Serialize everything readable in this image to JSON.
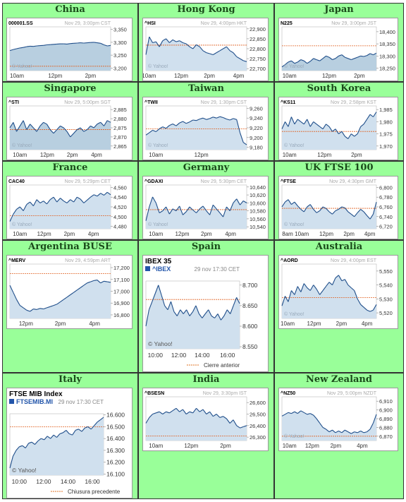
{
  "chart_data": [
    {
      "market": "China",
      "type": "line",
      "symbol": "000001.SS",
      "timestamp": "Nov 29, 3:00pm CST",
      "watermark": "© Yahoo!",
      "style": "small",
      "dark": true,
      "ylim": [
        3190,
        3360
      ],
      "yticks": [
        "3,350",
        "3,300",
        "3,250",
        "3,200"
      ],
      "ytick_values": [
        3350,
        3300,
        3250,
        3200
      ],
      "xticks": [
        "10am",
        "12pm",
        "2pm"
      ],
      "xtick_pos": [
        0.07,
        0.45,
        0.8
      ],
      "prev_close": 3207,
      "values": [
        3268,
        3272,
        3275,
        3278,
        3280,
        3283,
        3285,
        3284,
        3286,
        3287,
        3288,
        3290,
        3291,
        3292,
        3293,
        3294,
        3294,
        3293,
        3295,
        3296,
        3297,
        3298,
        3297,
        3298,
        3299,
        3300,
        3298,
        3296,
        3290,
        3286,
        3288
      ]
    },
    {
      "market": "Hong Kong",
      "type": "line",
      "symbol": "^HSI",
      "timestamp": "Nov 29, 4:00pm HKT",
      "watermark": "© Yahoo!",
      "style": "small",
      "dark": false,
      "ylim": [
        22690,
        22910
      ],
      "yticks": [
        "22,900",
        "22,850",
        "22,800",
        "22,750",
        "22,700"
      ],
      "ytick_values": [
        22900,
        22850,
        22800,
        22750,
        22700
      ],
      "xticks": [
        "10am",
        "12pm",
        "2pm",
        "4pm"
      ],
      "xtick_pos": [
        0.03,
        0.35,
        0.63,
        0.92
      ],
      "prev_close": 22818,
      "values": [
        22770,
        22860,
        22830,
        22835,
        22810,
        22840,
        22850,
        22830,
        22845,
        22835,
        22840,
        22830,
        22825,
        22810,
        22800,
        22820,
        22810,
        22790,
        22780,
        22775,
        22770,
        22780,
        22790,
        22800,
        22810,
        22790,
        22780,
        22760,
        22750,
        22740,
        22735
      ]
    },
    {
      "market": "Japan",
      "type": "line",
      "symbol": "N225",
      "timestamp": "Nov 29, 3:00pm JST",
      "watermark": "© Yahoo!",
      "style": "small",
      "dark": true,
      "ylim": [
        18240,
        18420
      ],
      "yticks": [
        "18,400",
        "18,350",
        "18,300",
        "18,250"
      ],
      "ytick_values": [
        18400,
        18350,
        18300,
        18250
      ],
      "xticks": [
        "10am",
        "12pm",
        "2pm"
      ],
      "xtick_pos": [
        0.08,
        0.5,
        0.82
      ],
      "prev_close": 18342,
      "values": [
        18255,
        18265,
        18275,
        18280,
        18270,
        18275,
        18285,
        18280,
        18270,
        18278,
        18290,
        18285,
        18280,
        18290,
        18300,
        18295,
        18285,
        18290,
        18300,
        18305,
        18295,
        18290,
        18285,
        18290,
        18295,
        18300,
        18298,
        18302,
        18310,
        18305,
        18312
      ]
    },
    {
      "market": "Singapore",
      "type": "line",
      "symbol": "^STI",
      "timestamp": "Nov 29, 5:00pm SGT",
      "watermark": "© Yahoo!",
      "style": "small",
      "dark": true,
      "ylim": [
        2863,
        2887
      ],
      "yticks": [
        "2,885",
        "2,880",
        "2,875",
        "2,870",
        "2,865"
      ],
      "ytick_values": [
        2885,
        2880,
        2875,
        2870,
        2865
      ],
      "xticks": [
        "10am",
        "12pm",
        "2pm",
        "4pm"
      ],
      "xtick_pos": [
        0.1,
        0.37,
        0.62,
        0.86
      ],
      "prev_close": 2874,
      "values": [
        2875,
        2878,
        2873,
        2876,
        2879,
        2874,
        2877,
        2875,
        2873,
        2876,
        2878,
        2877,
        2874,
        2872,
        2874,
        2876,
        2875,
        2873,
        2870,
        2872,
        2874,
        2875,
        2873,
        2874,
        2876,
        2875,
        2877,
        2878,
        2876,
        2879,
        2878
      ]
    },
    {
      "market": "Taiwan",
      "type": "line",
      "symbol": "^TWII",
      "timestamp": "Nov 29, 1:30pm CST",
      "watermark": "© Yahoo!",
      "style": "small",
      "dark": false,
      "ylim": [
        9175,
        9265
      ],
      "yticks": [
        "9,260",
        "9,240",
        "9,220",
        "9,200",
        "9,180"
      ],
      "ytick_values": [
        9260,
        9240,
        9220,
        9200,
        9180
      ],
      "xticks": [
        "10am",
        "12pm"
      ],
      "xtick_pos": [
        0.1,
        0.55
      ],
      "prev_close": 9218,
      "values": [
        9205,
        9210,
        9215,
        9212,
        9218,
        9222,
        9219,
        9225,
        9228,
        9224,
        9230,
        9233,
        9229,
        9232,
        9236,
        9235,
        9238,
        9240,
        9237,
        9239,
        9242,
        9240,
        9243,
        9241,
        9238,
        9236,
        9239,
        9237,
        9210,
        9190,
        9185
      ]
    },
    {
      "market": "South Korea",
      "type": "line",
      "symbol": "^KS11",
      "timestamp": "Nov 29, 2:58pm KST",
      "watermark": "© Yahoo!",
      "style": "small",
      "dark": false,
      "ylim": [
        1968.5,
        1986.5
      ],
      "yticks": [
        "1,985",
        "1,980",
        "1,975",
        "1,970"
      ],
      "ytick_values": [
        1985,
        1980,
        1975,
        1970
      ],
      "xticks": [
        "10am",
        "12pm",
        "2pm"
      ],
      "xtick_pos": [
        0.08,
        0.45,
        0.79
      ],
      "prev_close": 1976,
      "values": [
        1977,
        1980,
        1978,
        1982,
        1979,
        1981,
        1980,
        1979,
        1981,
        1978,
        1980,
        1979,
        1978,
        1977,
        1979,
        1978,
        1976,
        1977,
        1975,
        1976,
        1974,
        1973,
        1975,
        1974,
        1975,
        1978,
        1979,
        1981,
        1983,
        1982,
        1984
      ]
    },
    {
      "market": "France",
      "type": "line",
      "symbol": "CAC40",
      "timestamp": "Nov 29, 5:29pm CET",
      "watermark": "© Yahoo!",
      "style": "small",
      "dark": false,
      "ylim": [
        4475,
        4565
      ],
      "yticks": [
        "4,560",
        "4,540",
        "4,520",
        "4,500",
        "4,480"
      ],
      "ytick_values": [
        4560,
        4540,
        4520,
        4500,
        4480
      ],
      "xticks": [
        "10am",
        "12pm",
        "2pm",
        "4pm"
      ],
      "xtick_pos": [
        0.1,
        0.34,
        0.59,
        0.83
      ],
      "prev_close": 4502,
      "values": [
        4490,
        4505,
        4515,
        4520,
        4512,
        4525,
        4530,
        4522,
        4535,
        4528,
        4532,
        4526,
        4535,
        4540,
        4530,
        4538,
        4532,
        4528,
        4535,
        4530,
        4540,
        4536,
        4528,
        4534,
        4540,
        4545,
        4542,
        4548,
        4544,
        4550,
        4545
      ]
    },
    {
      "market": "Germany",
      "type": "line",
      "symbol": "^GDAXI",
      "timestamp": "Nov 29, 5:30pm CET",
      "watermark": "© Yahoo!",
      "style": "small",
      "dark": false,
      "ylim": [
        10535,
        10645
      ],
      "yticks": [
        "10,640",
        "10,620",
        "10,600",
        "10,580",
        "10,560",
        "10,540"
      ],
      "ytick_values": [
        10640,
        10620,
        10600,
        10580,
        10560,
        10540
      ],
      "xticks": [
        "10am",
        "12pm",
        "2pm",
        "4pm"
      ],
      "xtick_pos": [
        0.1,
        0.36,
        0.6,
        0.84
      ],
      "prev_close": 10583,
      "values": [
        10555,
        10590,
        10615,
        10600,
        10575,
        10580,
        10590,
        10572,
        10585,
        10580,
        10592,
        10570,
        10578,
        10590,
        10582,
        10575,
        10585,
        10592,
        10580,
        10570,
        10595,
        10585,
        10575,
        10565,
        10590,
        10580,
        10600,
        10610,
        10595,
        10605,
        10600
      ]
    },
    {
      "market": "UK FTSE 100",
      "type": "line",
      "symbol": "^FTSE",
      "timestamp": "Nov 29, 4:30pm GMT",
      "watermark": "© Yahoo!",
      "style": "small",
      "dark": false,
      "ylim": [
        6715,
        6805
      ],
      "yticks": [
        "6,800",
        "6,780",
        "6,760",
        "6,740",
        "6,720"
      ],
      "ytick_values": [
        6800,
        6780,
        6760,
        6740,
        6720
      ],
      "xticks": [
        "8am",
        "10am",
        "12pm",
        "2pm",
        "4pm"
      ],
      "xtick_pos": [
        0.06,
        0.21,
        0.47,
        0.71,
        0.93
      ],
      "prev_close": 6757,
      "values": [
        6760,
        6770,
        6775,
        6765,
        6770,
        6762,
        6755,
        6750,
        6760,
        6765,
        6755,
        6748,
        6752,
        6760,
        6757,
        6750,
        6745,
        6752,
        6755,
        6760,
        6758,
        6750,
        6745,
        6740,
        6748,
        6755,
        6750,
        6742,
        6735,
        6745,
        6770
      ]
    },
    {
      "market": "Argentina BUSE",
      "type": "line",
      "symbol": "^MERV",
      "timestamp": "Nov 29, 4:59pm ART",
      "watermark": "",
      "style": "small",
      "dark": false,
      "ylim": [
        16770,
        17230
      ],
      "yticks": [
        "17,200",
        "17,100",
        "17,000",
        "16,900",
        "16,800"
      ],
      "ytick_values": [
        17200,
        17100,
        17000,
        16900,
        16800
      ],
      "xticks": [
        "12pm",
        "2pm",
        "4pm"
      ],
      "xtick_pos": [
        0.16,
        0.5,
        0.84
      ],
      "prev_close": 17150,
      "values": [
        17050,
        16990,
        16930,
        16880,
        16860,
        16840,
        16830,
        16850,
        16845,
        16855,
        16850,
        16860,
        16870,
        16880,
        16890,
        16910,
        16930,
        16950,
        16970,
        16990,
        17010,
        17030,
        17050,
        17070,
        17080,
        17090,
        17095,
        17070,
        17085,
        17080,
        17075
      ]
    },
    {
      "market": "Spain",
      "type": "line",
      "style": "large",
      "title": "IBEX 35",
      "symbol": "^IBEX",
      "timestamp": "29 nov 17:30 CET",
      "watermark": "© Yahoo!",
      "legend": "Cierre anterior",
      "dark": false,
      "ylim": [
        8545,
        8710
      ],
      "yticks": [
        "8.700",
        "8.650",
        "8.600",
        "8.550"
      ],
      "ytick_values": [
        8700,
        8650,
        8600,
        8550
      ],
      "xticks": [
        "10:00",
        "12:00",
        "14:00",
        "16:00"
      ],
      "xtick_pos": [
        0.1,
        0.35,
        0.6,
        0.87
      ],
      "prev_close": 8665,
      "values": [
        8600,
        8640,
        8660,
        8680,
        8700,
        8675,
        8650,
        8640,
        8660,
        8635,
        8625,
        8640,
        8630,
        8640,
        8625,
        8635,
        8650,
        8630,
        8620,
        8630,
        8640,
        8625,
        8620,
        8630,
        8615,
        8625,
        8640,
        8630,
        8650,
        8670,
        8655
      ]
    },
    {
      "market": "Australia",
      "type": "line",
      "symbol": "^AORD",
      "timestamp": "Nov 29, 4:00pm EST",
      "watermark": "© Yahoo!",
      "style": "small",
      "dark": false,
      "ylim": [
        5516,
        5555
      ],
      "yticks": [
        "5,550",
        "5,540",
        "5,530",
        "5,520"
      ],
      "ytick_values": [
        5550,
        5540,
        5530,
        5520
      ],
      "xticks": [
        "10am",
        "12pm",
        "2pm",
        "4pm"
      ],
      "xtick_pos": [
        0.06,
        0.34,
        0.63,
        0.9
      ],
      "prev_close": 5531,
      "values": [
        5525,
        5532,
        5528,
        5536,
        5533,
        5539,
        5535,
        5541,
        5538,
        5536,
        5540,
        5537,
        5533,
        5536,
        5539,
        5542,
        5540,
        5545,
        5547,
        5543,
        5544,
        5540,
        5538,
        5536,
        5530,
        5526,
        5524,
        5522,
        5521,
        5522,
        5526
      ]
    },
    {
      "market": "Italy",
      "type": "line",
      "style": "large",
      "title": "FTSE MIB Index",
      "symbol": "FTSEMIB.MI",
      "timestamp": "29 nov 17:30 CET",
      "watermark": "© Yahoo!",
      "legend": "Chiusura precedente",
      "dark": false,
      "ylim": [
        16090,
        16610
      ],
      "yticks": [
        "16.600",
        "16.500",
        "16.400",
        "16.300",
        "16.200",
        "16.100"
      ],
      "ytick_values": [
        16600,
        16500,
        16400,
        16300,
        16200,
        16100
      ],
      "xticks": [
        "10:00",
        "12:00",
        "14:00",
        "16:00"
      ],
      "xtick_pos": [
        0.1,
        0.36,
        0.62,
        0.88
      ],
      "prev_close": 16500,
      "values": [
        16150,
        16250,
        16300,
        16330,
        16340,
        16320,
        16360,
        16370,
        16350,
        16380,
        16400,
        16390,
        16420,
        16400,
        16430,
        16410,
        16440,
        16450,
        16470,
        16440,
        16430,
        16470,
        16480,
        16460,
        16490,
        16500,
        16480,
        16510,
        16540,
        16560,
        16580
      ]
    },
    {
      "market": "India",
      "type": "line",
      "symbol": "^BSESN",
      "timestamp": "Nov 29, 3:30pm IST",
      "watermark": "",
      "style": "small",
      "dark": false,
      "ylim": [
        26270,
        26650
      ],
      "yticks": [
        "26,600",
        "26,500",
        "26,400",
        "26,300"
      ],
      "ytick_values": [
        26600,
        26500,
        26400,
        26300
      ],
      "xticks": [
        "10am",
        "12pm",
        "2pm"
      ],
      "xtick_pos": [
        0.1,
        0.45,
        0.79
      ],
      "prev_close": 26310,
      "values": [
        26420,
        26470,
        26500,
        26510,
        26520,
        26500,
        26520,
        26510,
        26530,
        26550,
        26520,
        26540,
        26500,
        26520,
        26510,
        26550,
        26520,
        26540,
        26500,
        26520,
        26480,
        26500,
        26470,
        26480,
        26460,
        26420,
        26450,
        26400,
        26380,
        26390,
        26400
      ]
    },
    {
      "market": "New Zealand",
      "type": "line",
      "symbol": "^NZ50",
      "timestamp": "Nov 29, 5:00pm NZDT",
      "watermark": "© Yahoo!",
      "style": "small",
      "dark": false,
      "ylim": [
        6865,
        6915
      ],
      "yticks": [
        "6,910",
        "6,900",
        "6,890",
        "6,880",
        "6,870"
      ],
      "ytick_values": [
        6910,
        6900,
        6890,
        6880,
        6870
      ],
      "xticks": [
        "10am",
        "12pm",
        "2pm",
        "4pm"
      ],
      "xtick_pos": [
        0.08,
        0.32,
        0.57,
        0.85
      ],
      "prev_close": 6870,
      "values": [
        6893,
        6895,
        6897,
        6896,
        6898,
        6896,
        6899,
        6897,
        6895,
        6896,
        6894,
        6890,
        6885,
        6880,
        6878,
        6875,
        6877,
        6874,
        6876,
        6874,
        6877,
        6875,
        6873,
        6875,
        6874,
        6876,
        6874,
        6875,
        6878,
        6885,
        6895
      ]
    }
  ]
}
